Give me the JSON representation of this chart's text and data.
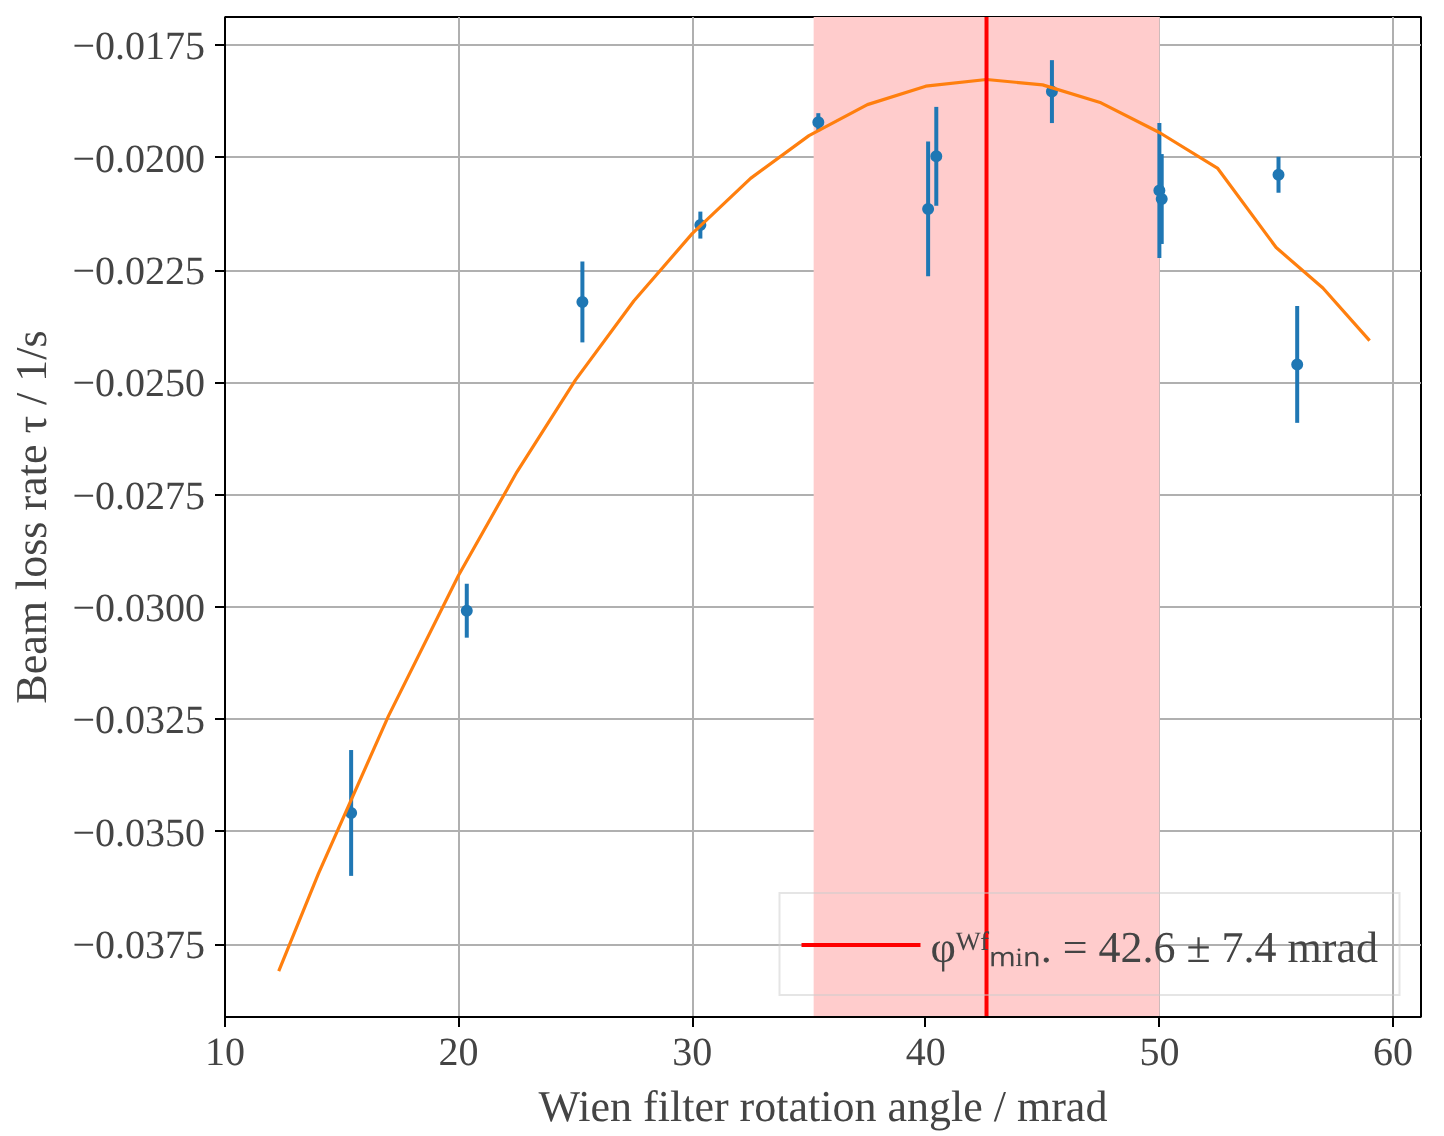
{
  "chart_data": {
    "type": "scatter",
    "xlabel": "Wien filter rotation angle / mrad",
    "ylabel": "Beam loss rate τ / 1/s",
    "xlim": [
      10,
      61.2
    ],
    "ylim": [
      -0.03912,
      -0.01687
    ],
    "xticks": [
      10,
      20,
      30,
      40,
      50,
      60
    ],
    "yticks": [
      {
        "value": -0.0175,
        "label": "−0.0175"
      },
      {
        "value": -0.02,
        "label": "−0.0200"
      },
      {
        "value": -0.0225,
        "label": "−0.0225"
      },
      {
        "value": -0.025,
        "label": "−0.0250"
      },
      {
        "value": -0.0275,
        "label": "−0.0275"
      },
      {
        "value": -0.03,
        "label": "−0.0300"
      },
      {
        "value": -0.0325,
        "label": "−0.0325"
      },
      {
        "value": -0.035,
        "label": "−0.0350"
      },
      {
        "value": -0.0375,
        "label": "−0.0375"
      }
    ],
    "grid": true,
    "legend": "bottom right",
    "marker": "circle",
    "series": [
      {
        "color": "#1f77b4",
        "x": [
          15.4,
          20.35,
          25.3,
          30.35,
          35.4,
          40.1,
          40.45,
          45.4,
          50.0,
          50.1,
          55.1,
          55.9
        ],
        "values": [
          -0.03458,
          -0.03008,
          -0.02321,
          -0.0215,
          -0.01921,
          -0.02114,
          -0.01997,
          -0.01853,
          -0.02073,
          -0.02092,
          -0.02038,
          -0.0246
        ],
        "errors": [
          0.0014,
          0.0006,
          0.0009,
          0.0003,
          0.0002,
          0.0015,
          0.0011,
          0.0007,
          0.0015,
          0.001,
          0.0004,
          0.0013
        ]
      },
      {
        "type": "line",
        "marker": "none",
        "color": "#ff7f0e",
        "x": [
          12.3,
          14,
          17,
          20,
          22.5,
          25,
          27.5,
          30,
          32.5,
          35,
          37.5,
          40,
          42.6,
          45,
          47.5,
          50,
          52.5,
          55,
          57,
          59
        ],
        "values": [
          -0.0381,
          -0.03593,
          -0.03242,
          -0.02929,
          -0.02699,
          -0.02495,
          -0.02319,
          -0.02169,
          -0.02046,
          -0.01951,
          -0.01882,
          -0.01841,
          -0.01826,
          -0.01838,
          -0.01878,
          -0.01944,
          -0.02024,
          -0.022,
          -0.0229,
          -0.02407
        ]
      }
    ],
    "ref_lines": [
      {
        "axis": "x",
        "value": 42.6,
        "label": "φᵂᶠₘᵢₙ. = 42.6 ± 7.4 mrad",
        "color": "#ff0000"
      }
    ],
    "bands": [
      {
        "axis": "x",
        "from": 35.2,
        "to": 50.0,
        "color": "#ffcccc"
      }
    ]
  }
}
